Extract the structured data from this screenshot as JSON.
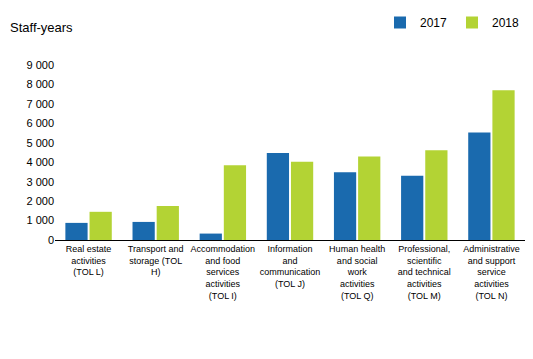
{
  "chart_data": {
    "type": "bar",
    "y_label": "Staff-years",
    "categories": [
      "Real estate activities (TOL L)",
      "Transport and storage (TOL H)",
      "Accommodation and food services activities (TOL I)",
      "Information and communication (TOL J)",
      "Human health and social work activities (TOL Q)",
      "Professional, scientific and technical activities (TOL M)",
      "Administrative and support service activities (TOL N)"
    ],
    "series": [
      {
        "name": "2017",
        "color": "#1a6aae",
        "values": [
          880,
          930,
          330,
          4480,
          3480,
          3300,
          5530
        ]
      },
      {
        "name": "2018",
        "color": "#b3d334",
        "values": [
          1450,
          1750,
          3850,
          4020,
          4300,
          4620,
          7700
        ]
      }
    ],
    "ylim": [
      0,
      9000
    ],
    "yticks": [
      0,
      {
        "value": 1000,
        "label": "1 000"
      },
      {
        "value": 2000,
        "label": "2 000"
      },
      {
        "value": 3000,
        "label": "3 000"
      },
      {
        "value": 4000,
        "label": "4 000"
      },
      {
        "value": 5000,
        "label": "5 000"
      },
      {
        "value": 6000,
        "label": "6 000"
      },
      {
        "value": 7000,
        "label": "7 000"
      },
      {
        "value": 8000,
        "label": "8 000"
      },
      {
        "value": 9000,
        "label": "9 000"
      }
    ],
    "grid": false,
    "legend": "top right"
  }
}
